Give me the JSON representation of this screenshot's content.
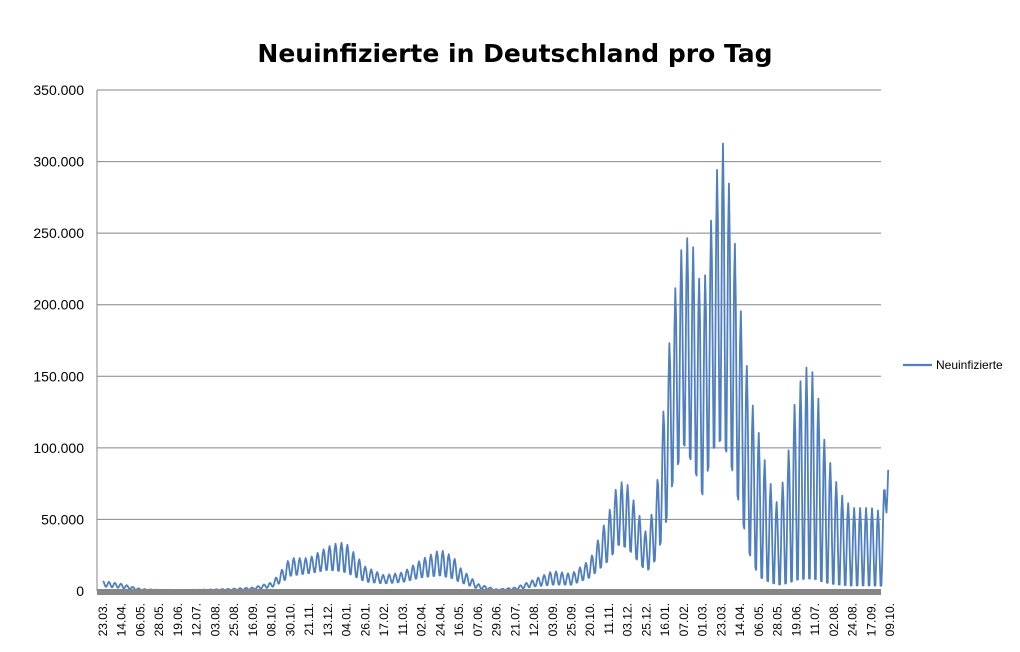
{
  "chart_data": {
    "type": "line",
    "title": "Neuinfizierte in Deutschland pro Tag",
    "xlabel": "",
    "ylabel": "",
    "ylim": [
      0,
      350000
    ],
    "grid": true,
    "legend_position": "right",
    "y_ticks": [
      "0",
      "50.000",
      "100.000",
      "150.000",
      "200.000",
      "250.000",
      "300.000",
      "350.000"
    ],
    "x_ticks": [
      "23.03.",
      "14.04.",
      "06.05.",
      "28.05.",
      "19.06.",
      "12.07.",
      "03.08.",
      "25.08.",
      "16.09.",
      "08.10.",
      "30.10.",
      "21.11.",
      "13.12.",
      "04.01.",
      "26.01.",
      "17.02.",
      "11.03.",
      "02.04.",
      "24.04.",
      "16.05.",
      "07.06.",
      "29.06.",
      "21.07.",
      "12.08.",
      "03.09.",
      "25.09.",
      "20.10.",
      "11.11.",
      "03.12.",
      "25.12.",
      "16.01.",
      "07.02.",
      "01.03.",
      "23.03.",
      "14.04.",
      "06.05.",
      "28.05.",
      "19.06.",
      "11.07.",
      "02.08.",
      "24.08.",
      "17.09.",
      "09.10."
    ],
    "series_color": "#4F7FBE",
    "series": [
      {
        "name": "Neuinfizierte",
        "envelope": {
          "points": [
            {
              "x": 0,
              "low": 3000,
              "high": 7000
            },
            {
              "x": 1,
              "low": 2000,
              "high": 5000
            },
            {
              "x": 2,
              "low": 400,
              "high": 1500
            },
            {
              "x": 3,
              "low": 300,
              "high": 900
            },
            {
              "x": 4,
              "low": 300,
              "high": 800
            },
            {
              "x": 5,
              "low": 300,
              "high": 900
            },
            {
              "x": 6,
              "low": 400,
              "high": 1200
            },
            {
              "x": 7,
              "low": 500,
              "high": 1700
            },
            {
              "x": 8,
              "low": 900,
              "high": 2500
            },
            {
              "x": 9,
              "low": 2500,
              "high": 6000
            },
            {
              "x": 9.4,
              "low": 5000,
              "high": 12000
            },
            {
              "x": 9.8,
              "low": 8000,
              "high": 20000
            },
            {
              "x": 10,
              "low": 10000,
              "high": 23000
            },
            {
              "x": 11,
              "low": 12000,
              "high": 23000
            },
            {
              "x": 12,
              "low": 14000,
              "high": 31000
            },
            {
              "x": 12.6,
              "low": 13000,
              "high": 34000
            },
            {
              "x": 13,
              "low": 12000,
              "high": 33000
            },
            {
              "x": 14,
              "low": 6000,
              "high": 17000
            },
            {
              "x": 15,
              "low": 5000,
              "high": 11000
            },
            {
              "x": 16,
              "low": 6000,
              "high": 13000
            },
            {
              "x": 17,
              "low": 9000,
              "high": 22000
            },
            {
              "x": 18,
              "low": 10000,
              "high": 29000
            },
            {
              "x": 18.7,
              "low": 8000,
              "high": 24000
            },
            {
              "x": 19,
              "low": 6000,
              "high": 17000
            },
            {
              "x": 20,
              "low": 1500,
              "high": 5000
            },
            {
              "x": 21,
              "low": 400,
              "high": 1200
            },
            {
              "x": 22,
              "low": 800,
              "high": 2500
            },
            {
              "x": 23,
              "low": 3000,
              "high": 8000
            },
            {
              "x": 24,
              "low": 4000,
              "high": 14000
            },
            {
              "x": 25,
              "low": 4000,
              "high": 12000
            },
            {
              "x": 26,
              "low": 9000,
              "high": 22000
            },
            {
              "x": 27,
              "low": 20000,
              "high": 55000
            },
            {
              "x": 27.5,
              "low": 30000,
              "high": 77000
            },
            {
              "x": 28,
              "low": 28000,
              "high": 74000
            },
            {
              "x": 29,
              "low": 12000,
              "high": 40000
            },
            {
              "x": 29.5,
              "low": 20000,
              "high": 65000
            },
            {
              "x": 30,
              "low": 40000,
              "high": 140000
            },
            {
              "x": 30.4,
              "low": 70000,
              "high": 200000
            },
            {
              "x": 31,
              "low": 95000,
              "high": 250000
            },
            {
              "x": 31.5,
              "low": 80000,
              "high": 240000
            },
            {
              "x": 32,
              "low": 60000,
              "high": 205000
            },
            {
              "x": 32.5,
              "low": 90000,
              "high": 265000
            },
            {
              "x": 33,
              "low": 95000,
              "high": 320000
            },
            {
              "x": 33.5,
              "low": 80000,
              "high": 276000
            },
            {
              "x": 34,
              "low": 50000,
              "high": 200000
            },
            {
              "x": 34.5,
              "low": 20000,
              "high": 140000
            },
            {
              "x": 35,
              "low": 5000,
              "high": 110000
            },
            {
              "x": 35.5,
              "low": 3000,
              "high": 80000
            },
            {
              "x": 36,
              "low": 1500,
              "high": 60000
            },
            {
              "x": 36.5,
              "low": 1000,
              "high": 90000
            },
            {
              "x": 37,
              "low": 1000,
              "high": 140000
            },
            {
              "x": 37.6,
              "low": 1000,
              "high": 158000
            },
            {
              "x": 38,
              "low": 1000,
              "high": 150000
            },
            {
              "x": 38.5,
              "low": 1000,
              "high": 105000
            },
            {
              "x": 39,
              "low": 1000,
              "high": 80000
            },
            {
              "x": 39.5,
              "low": 1000,
              "high": 65000
            },
            {
              "x": 40,
              "low": 1000,
              "high": 58000
            },
            {
              "x": 41,
              "low": 1000,
              "high": 58000
            },
            {
              "x": 41.6,
              "low": 1000,
              "high": 55000
            },
            {
              "x": 41.8,
              "low": 50000,
              "high": 97000
            },
            {
              "x": 41.9,
              "low": 78000,
              "high": 95000
            }
          ]
        }
      }
    ]
  }
}
